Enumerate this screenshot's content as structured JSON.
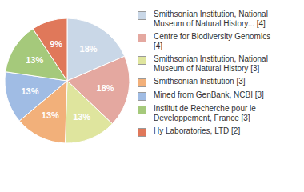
{
  "chart_data": {
    "type": "pie",
    "categories": [
      "Smithsonian Institution, National Museum of Natural History... [4]",
      "Centre for Biodiversity Genomics [4]",
      "Smithsonian Institution, National Museum of Natural History [3]",
      "Smithsonian Institution [3]",
      "Mined from GenBank, NCBI [3]",
      "Institut de Recherche pour le Developpement, France [3]",
      "Hy Laboratories, LTD [2]"
    ],
    "values": [
      18,
      18,
      13,
      13,
      13,
      13,
      9
    ],
    "value_labels": [
      "18%",
      "18%",
      "13%",
      "13%",
      "13%",
      "13%",
      "9%"
    ],
    "data_labels": true,
    "legend": "right",
    "colors": [
      "#c9d7e7",
      "#e4a8a0",
      "#dfe59e",
      "#f2b07a",
      "#a0bce4",
      "#a5c97b",
      "#e0785a"
    ]
  }
}
